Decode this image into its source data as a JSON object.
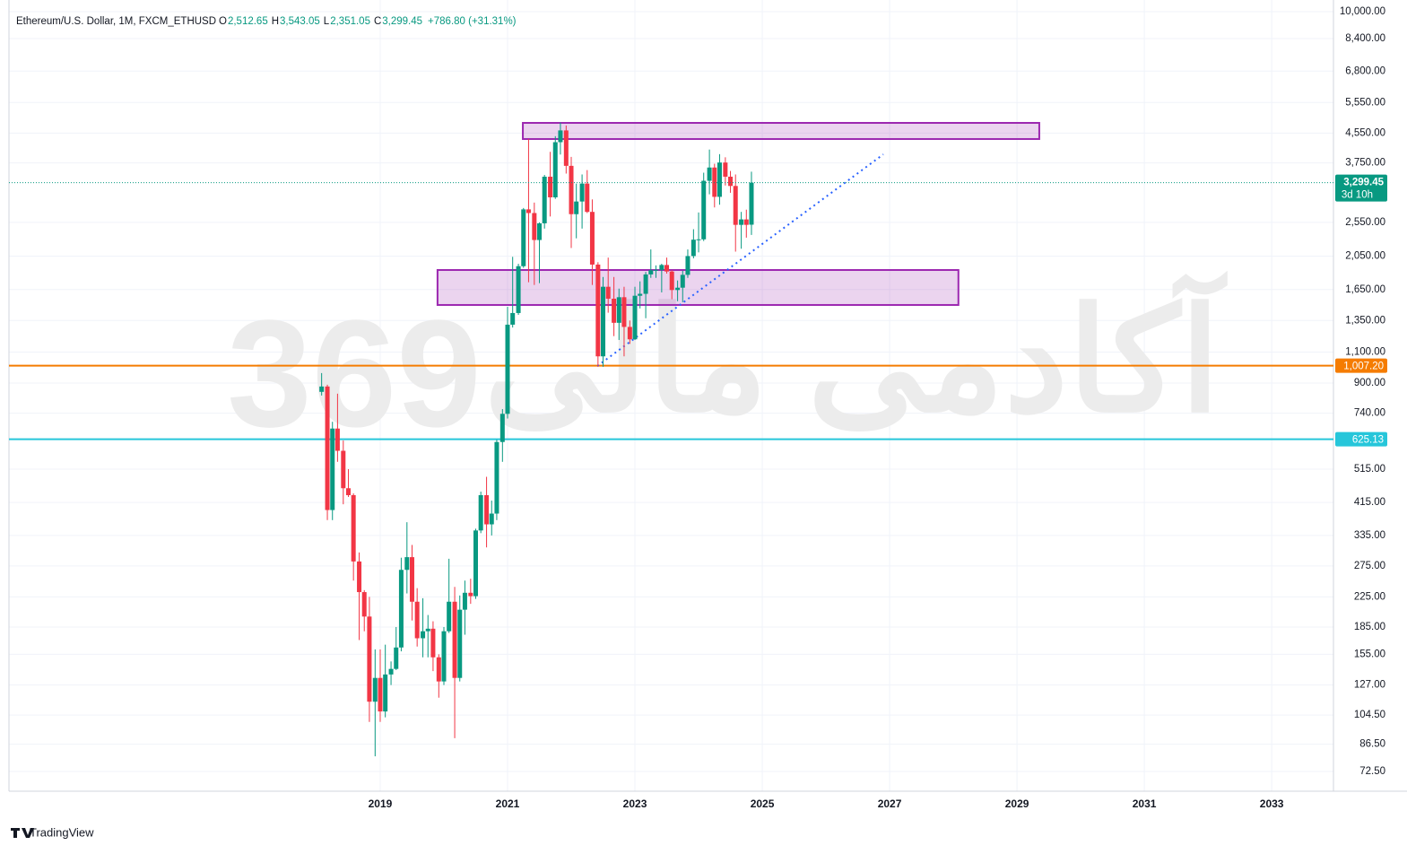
{
  "chart_data": {
    "type": "candlestick",
    "title": "Ethereum/U.S. Dollar, 1M, FXCM_ETHUSD",
    "ohlc_header": [
      {
        "key": "O",
        "value": "2,512.65"
      },
      {
        "key": "H",
        "value": "3,543.05"
      },
      {
        "key": "L",
        "value": "2,351.05"
      },
      {
        "key": "C",
        "value": "3,299.45"
      }
    ],
    "change": "+786.80 (+31.31%)",
    "up_color": "#089981",
    "down_color": "#f23645",
    "log_scale": true,
    "grid": true,
    "xlim": [
      2013.17,
      2033.97
    ],
    "xticks": [
      2019,
      2021,
      2023,
      2025,
      2027,
      2029,
      2031,
      2033
    ],
    "ylim": [
      63.8,
      10786
    ],
    "yticks": [
      {
        "value": 10000,
        "label": "10,000.00"
      },
      {
        "value": 8400,
        "label": "8,400.00"
      },
      {
        "value": 6800,
        "label": "6,800.00"
      },
      {
        "value": 5550,
        "label": "5,550.00"
      },
      {
        "value": 4550,
        "label": "4,550.00"
      },
      {
        "value": 3750,
        "label": "3,750.00"
      },
      {
        "value": 2550,
        "label": "2,550.00"
      },
      {
        "value": 2050,
        "label": "2,050.00"
      },
      {
        "value": 1650,
        "label": "1,650.00"
      },
      {
        "value": 1350,
        "label": "1,350.00"
      },
      {
        "value": 1100,
        "label": "1,100.00"
      },
      {
        "value": 900,
        "label": "900.00"
      },
      {
        "value": 740,
        "label": "740.00"
      },
      {
        "value": 515,
        "label": "515.00"
      },
      {
        "value": 415,
        "label": "415.00"
      },
      {
        "value": 335,
        "label": "335.00"
      },
      {
        "value": 275,
        "label": "275.00"
      },
      {
        "value": 225,
        "label": "225.00"
      },
      {
        "value": 185,
        "label": "185.00"
      },
      {
        "value": 155,
        "label": "155.00"
      },
      {
        "value": 127,
        "label": "127.00"
      },
      {
        "value": 104.5,
        "label": "104.50"
      },
      {
        "value": 86.5,
        "label": "86.50"
      },
      {
        "value": 72.5,
        "label": "72.50"
      }
    ],
    "x": [
      2018.08,
      2018.17,
      2018.25,
      2018.33,
      2018.42,
      2018.5,
      2018.58,
      2018.67,
      2018.75,
      2018.83,
      2018.92,
      2019,
      2019.08,
      2019.17,
      2019.25,
      2019.33,
      2019.42,
      2019.5,
      2019.58,
      2019.67,
      2019.75,
      2019.83,
      2019.92,
      2020,
      2020.08,
      2020.17,
      2020.25,
      2020.33,
      2020.42,
      2020.5,
      2020.58,
      2020.67,
      2020.75,
      2020.83,
      2020.92,
      2021,
      2021.08,
      2021.17,
      2021.25,
      2021.33,
      2021.42,
      2021.5,
      2021.58,
      2021.67,
      2021.75,
      2021.83,
      2021.92,
      2022,
      2022.08,
      2022.17,
      2022.25,
      2022.33,
      2022.42,
      2022.5,
      2022.58,
      2022.67,
      2022.75,
      2022.83,
      2022.92,
      2023,
      2023.08,
      2023.17,
      2023.25,
      2023.33,
      2023.42,
      2023.5,
      2023.58,
      2023.67,
      2023.75,
      2023.83,
      2023.92,
      2024,
      2024.08,
      2024.17,
      2024.25,
      2024.33,
      2024.42,
      2024.5,
      2024.58,
      2024.67,
      2024.75,
      2024.83
    ],
    "open": [
      850,
      880,
      395,
      670,
      580,
      455,
      435,
      283,
      232,
      198,
      114,
      133,
      107,
      136,
      141,
      162,
      268,
      291,
      218,
      172,
      180,
      183,
      152,
      130,
      180,
      218,
      133,
      207,
      231,
      226,
      346,
      435,
      360,
      386,
      614,
      737,
      1314,
      1417,
      1920,
      2775,
      2710,
      2275,
      2535,
      3430,
      3000,
      4290,
      4630,
      3680,
      2690,
      2920,
      3280,
      2730,
      1940,
      1070,
      1680,
      1555,
      1330,
      1570,
      1295,
      1195,
      1585,
      1605,
      1820,
      1870,
      1875,
      1935,
      1855,
      1645,
      1670,
      1815,
      2050,
      2280,
      2285,
      3340,
      3640,
      3010,
      3760,
      3430,
      3230,
      2510,
      2600,
      2512.65
    ],
    "high": [
      960,
      890,
      700,
      840,
      620,
      515,
      440,
      300,
      235,
      225,
      160,
      160,
      165,
      148,
      185,
      290,
      365,
      315,
      238,
      223,
      200,
      192,
      155,
      185,
      288,
      240,
      227,
      250,
      253,
      350,
      445,
      490,
      420,
      623,
      760,
      1475,
      2040,
      1950,
      2800,
      4380,
      2900,
      2550,
      3470,
      4030,
      4460,
      4870,
      4780,
      3900,
      3280,
      3480,
      3580,
      2960,
      1970,
      1790,
      2030,
      1790,
      1660,
      1680,
      1350,
      1680,
      1740,
      1850,
      2140,
      1930,
      1950,
      2030,
      1870,
      1750,
      1865,
      2140,
      2440,
      2720,
      3520,
      4090,
      3730,
      3970,
      3890,
      3560,
      3480,
      2730,
      2770,
      3543.05
    ],
    "low": [
      830,
      370,
      370,
      540,
      410,
      430,
      250,
      170,
      180,
      100,
      80,
      100,
      103,
      127,
      140,
      158,
      230,
      193,
      163,
      152,
      152,
      139,
      117,
      127,
      178,
      90,
      130,
      176,
      215,
      222,
      340,
      310,
      335,
      370,
      540,
      715,
      1290,
      1400,
      1900,
      1730,
      1700,
      1720,
      2450,
      2650,
      2970,
      3960,
      3500,
      2160,
      2300,
      2450,
      2710,
      1700,
      1000,
      1000,
      1420,
      1220,
      1190,
      1070,
      1160,
      1190,
      1460,
      1370,
      1780,
      1780,
      1620,
      1830,
      1550,
      1530,
      1520,
      1780,
      2020,
      2100,
      2260,
      3060,
      2810,
      2860,
      3240,
      3090,
      2110,
      2150,
      2310,
      2351.05
    ],
    "close": [
      880,
      395,
      670,
      580,
      455,
      435,
      283,
      232,
      198,
      114,
      133,
      107,
      136,
      141,
      162,
      268,
      291,
      218,
      172,
      180,
      183,
      152,
      130,
      180,
      218,
      133,
      207,
      231,
      226,
      346,
      435,
      360,
      386,
      614,
      737,
      1314,
      1417,
      1920,
      2775,
      2710,
      2275,
      2535,
      3430,
      3000,
      4290,
      4630,
      3680,
      2690,
      2920,
      3280,
      2730,
      1940,
      1070,
      1680,
      1555,
      1330,
      1570,
      1295,
      1195,
      1585,
      1605,
      1820,
      1870,
      1875,
      1935,
      1855,
      1645,
      1670,
      1815,
      2050,
      2280,
      2285,
      3340,
      3640,
      3010,
      3760,
      3430,
      3230,
      2510,
      2600,
      2510,
      3299.45
    ],
    "last_price": {
      "value": 3299.45,
      "label": "3,299.45",
      "countdown": "3d 10h",
      "color": "#089981"
    },
    "hlines": [
      {
        "value": 1007.2,
        "label": "1,007.20",
        "color": "#f57c00"
      },
      {
        "value": 625.13,
        "label": "625.13",
        "color": "#26c6da"
      }
    ],
    "zones": [
      {
        "x": [
          2021.24,
          2029.35
        ],
        "y": [
          4379,
          4862
        ]
      },
      {
        "x": [
          2019.9,
          2028.08
        ],
        "y": [
          1493,
          1873
        ]
      }
    ],
    "zone_color": "#9c27b0",
    "trendline": {
      "x": [
        2022.41,
        2026.9
      ],
      "y": [
        1005,
        3964
      ],
      "color": "#2962ff"
    },
    "watermark": {
      "number": "369",
      "text": "آکادمی مالی"
    },
    "brand": "TradingView"
  }
}
